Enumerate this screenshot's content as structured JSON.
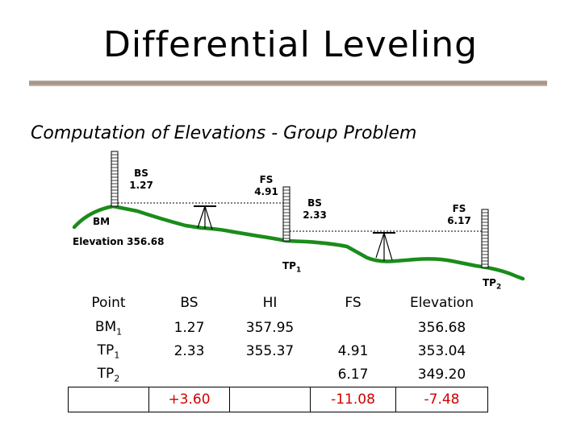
{
  "title": "Differential Leveling",
  "subtitle": "Computation of Elevations - Group Problem",
  "diagram": {
    "bs1": {
      "label": "BS",
      "value": "1.27"
    },
    "fs1": {
      "label": "FS",
      "value": "4.91"
    },
    "bs2": {
      "label": "BS",
      "value": "2.33"
    },
    "fs2": {
      "label": "FS",
      "value": "6.17"
    },
    "bm_label": "BM",
    "elevation_label": "Elevation 356.68",
    "tp1": {
      "base": "TP",
      "sub": "1"
    },
    "tp2": {
      "base": "TP",
      "sub": "2"
    },
    "colors": {
      "ground": "#1a8c1a",
      "line": "#000000"
    }
  },
  "table": {
    "headers": [
      "Point",
      "BS",
      "HI",
      "FS",
      "Elevation"
    ],
    "rows": [
      {
        "point": "BM",
        "sub": "1",
        "bs": "1.27",
        "hi": "357.95",
        "fs": "",
        "elevation": "356.68"
      },
      {
        "point": "TP",
        "sub": "1",
        "bs": "2.33",
        "hi": "355.37",
        "fs": "4.91",
        "elevation": "353.04"
      },
      {
        "point": "TP",
        "sub": "2",
        "bs": "",
        "hi": "",
        "fs": "6.17",
        "elevation": "349.20"
      }
    ],
    "sums": {
      "bs": "+3.60",
      "fs": "-11.08",
      "elevation": "-7.48"
    },
    "colors": {
      "sum": "#d00000"
    }
  }
}
